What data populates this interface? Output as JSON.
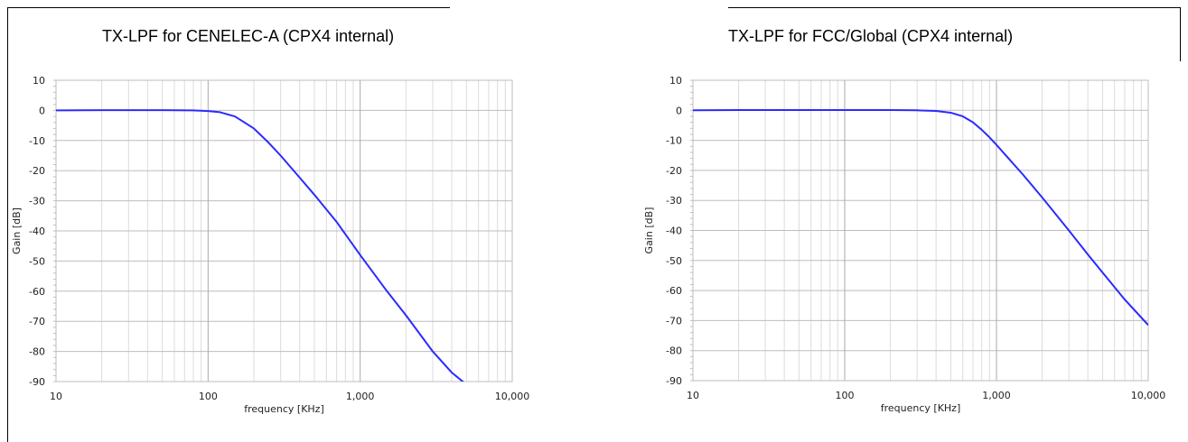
{
  "chart_data": [
    {
      "type": "line",
      "title": "TX-LPF for CENELEC-A (CPX4 internal)",
      "xlabel": "frequency [KHz]",
      "ylabel": "Gain [dB]",
      "x_scale": "log",
      "xlim": [
        10,
        10000
      ],
      "ylim": [
        -90,
        10
      ],
      "x_ticks": [
        10,
        100,
        1000,
        10000
      ],
      "x_tick_labels": [
        "10",
        "100",
        "1,000",
        "10,000"
      ],
      "y_ticks": [
        10,
        0,
        -10,
        -20,
        -30,
        -40,
        -50,
        -60,
        -70,
        -80,
        -90
      ],
      "grid": true,
      "series": [
        {
          "color": "#2b2bff",
          "x": [
            10,
            20,
            50,
            80,
            100,
            120,
            150,
            180,
            200,
            250,
            300,
            400,
            500,
            700,
            1000,
            1500,
            2000,
            3000,
            4000,
            5000,
            5200
          ],
          "y": [
            0,
            0.1,
            0.1,
            0,
            -0.2,
            -0.6,
            -2,
            -4.5,
            -6,
            -10.7,
            -15,
            -22.3,
            -28,
            -37,
            -48,
            -60,
            -68,
            -80,
            -87,
            -91,
            -91
          ]
        }
      ]
    },
    {
      "type": "line",
      "title": "TX-LPF for FCC/Global (CPX4 internal)",
      "xlabel": "frequency [KHz]",
      "ylabel": "Gain [dB]",
      "x_scale": "log",
      "xlim": [
        10,
        10000
      ],
      "ylim": [
        -90,
        10
      ],
      "x_ticks": [
        10,
        100,
        1000,
        10000
      ],
      "x_tick_labels": [
        "10",
        "100",
        "1,000",
        "10,000"
      ],
      "y_ticks": [
        10,
        0,
        -10,
        -20,
        -30,
        -40,
        -50,
        -60,
        -70,
        -80,
        -90
      ],
      "grid": true,
      "series": [
        {
          "color": "#2b2bff",
          "x": [
            10,
            20,
            50,
            100,
            200,
            300,
            400,
            500,
            600,
            700,
            800,
            900,
            1000,
            1200,
            1500,
            2000,
            3000,
            4000,
            5000,
            7000,
            10000
          ],
          "y": [
            0,
            0.1,
            0.1,
            0.1,
            0.1,
            0,
            -0.2,
            -0.8,
            -2,
            -4,
            -6.5,
            -9,
            -11.5,
            -16,
            -21.5,
            -29,
            -40,
            -48,
            -54,
            -63,
            -71.5
          ]
        }
      ]
    }
  ]
}
